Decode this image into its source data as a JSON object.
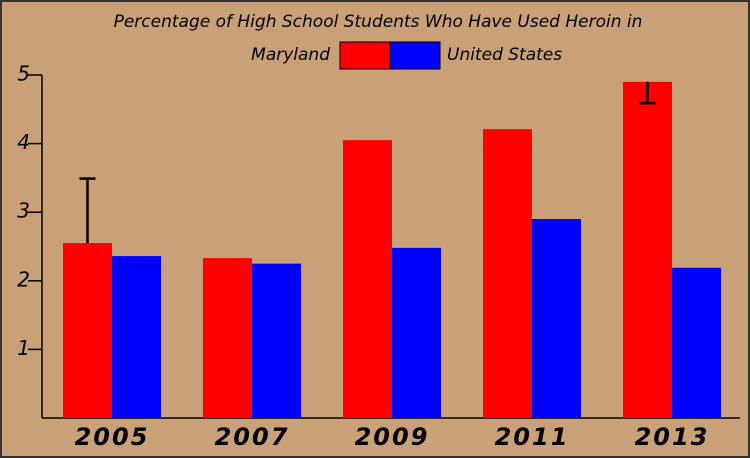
{
  "chart_data": {
    "type": "bar",
    "title": "Percentage of High School Students Who Have Used Heroin in",
    "categories": [
      "2005",
      "2007",
      "2009",
      "2011",
      "2013"
    ],
    "series": [
      {
        "name": "Maryland",
        "color": "#ff0000",
        "values": [
          2.55,
          2.33,
          4.05,
          4.21,
          4.9
        ],
        "error_high": [
          0.94,
          null,
          null,
          null,
          null
        ],
        "error_low": [
          null,
          null,
          null,
          null,
          0.31
        ]
      },
      {
        "name": "United States",
        "color": "#0000ff",
        "values": [
          2.36,
          2.25,
          2.48,
          2.9,
          2.19
        ]
      }
    ],
    "ylim": [
      0,
      5
    ],
    "yticks": [
      1,
      2,
      3,
      4,
      5
    ],
    "grid": false
  }
}
